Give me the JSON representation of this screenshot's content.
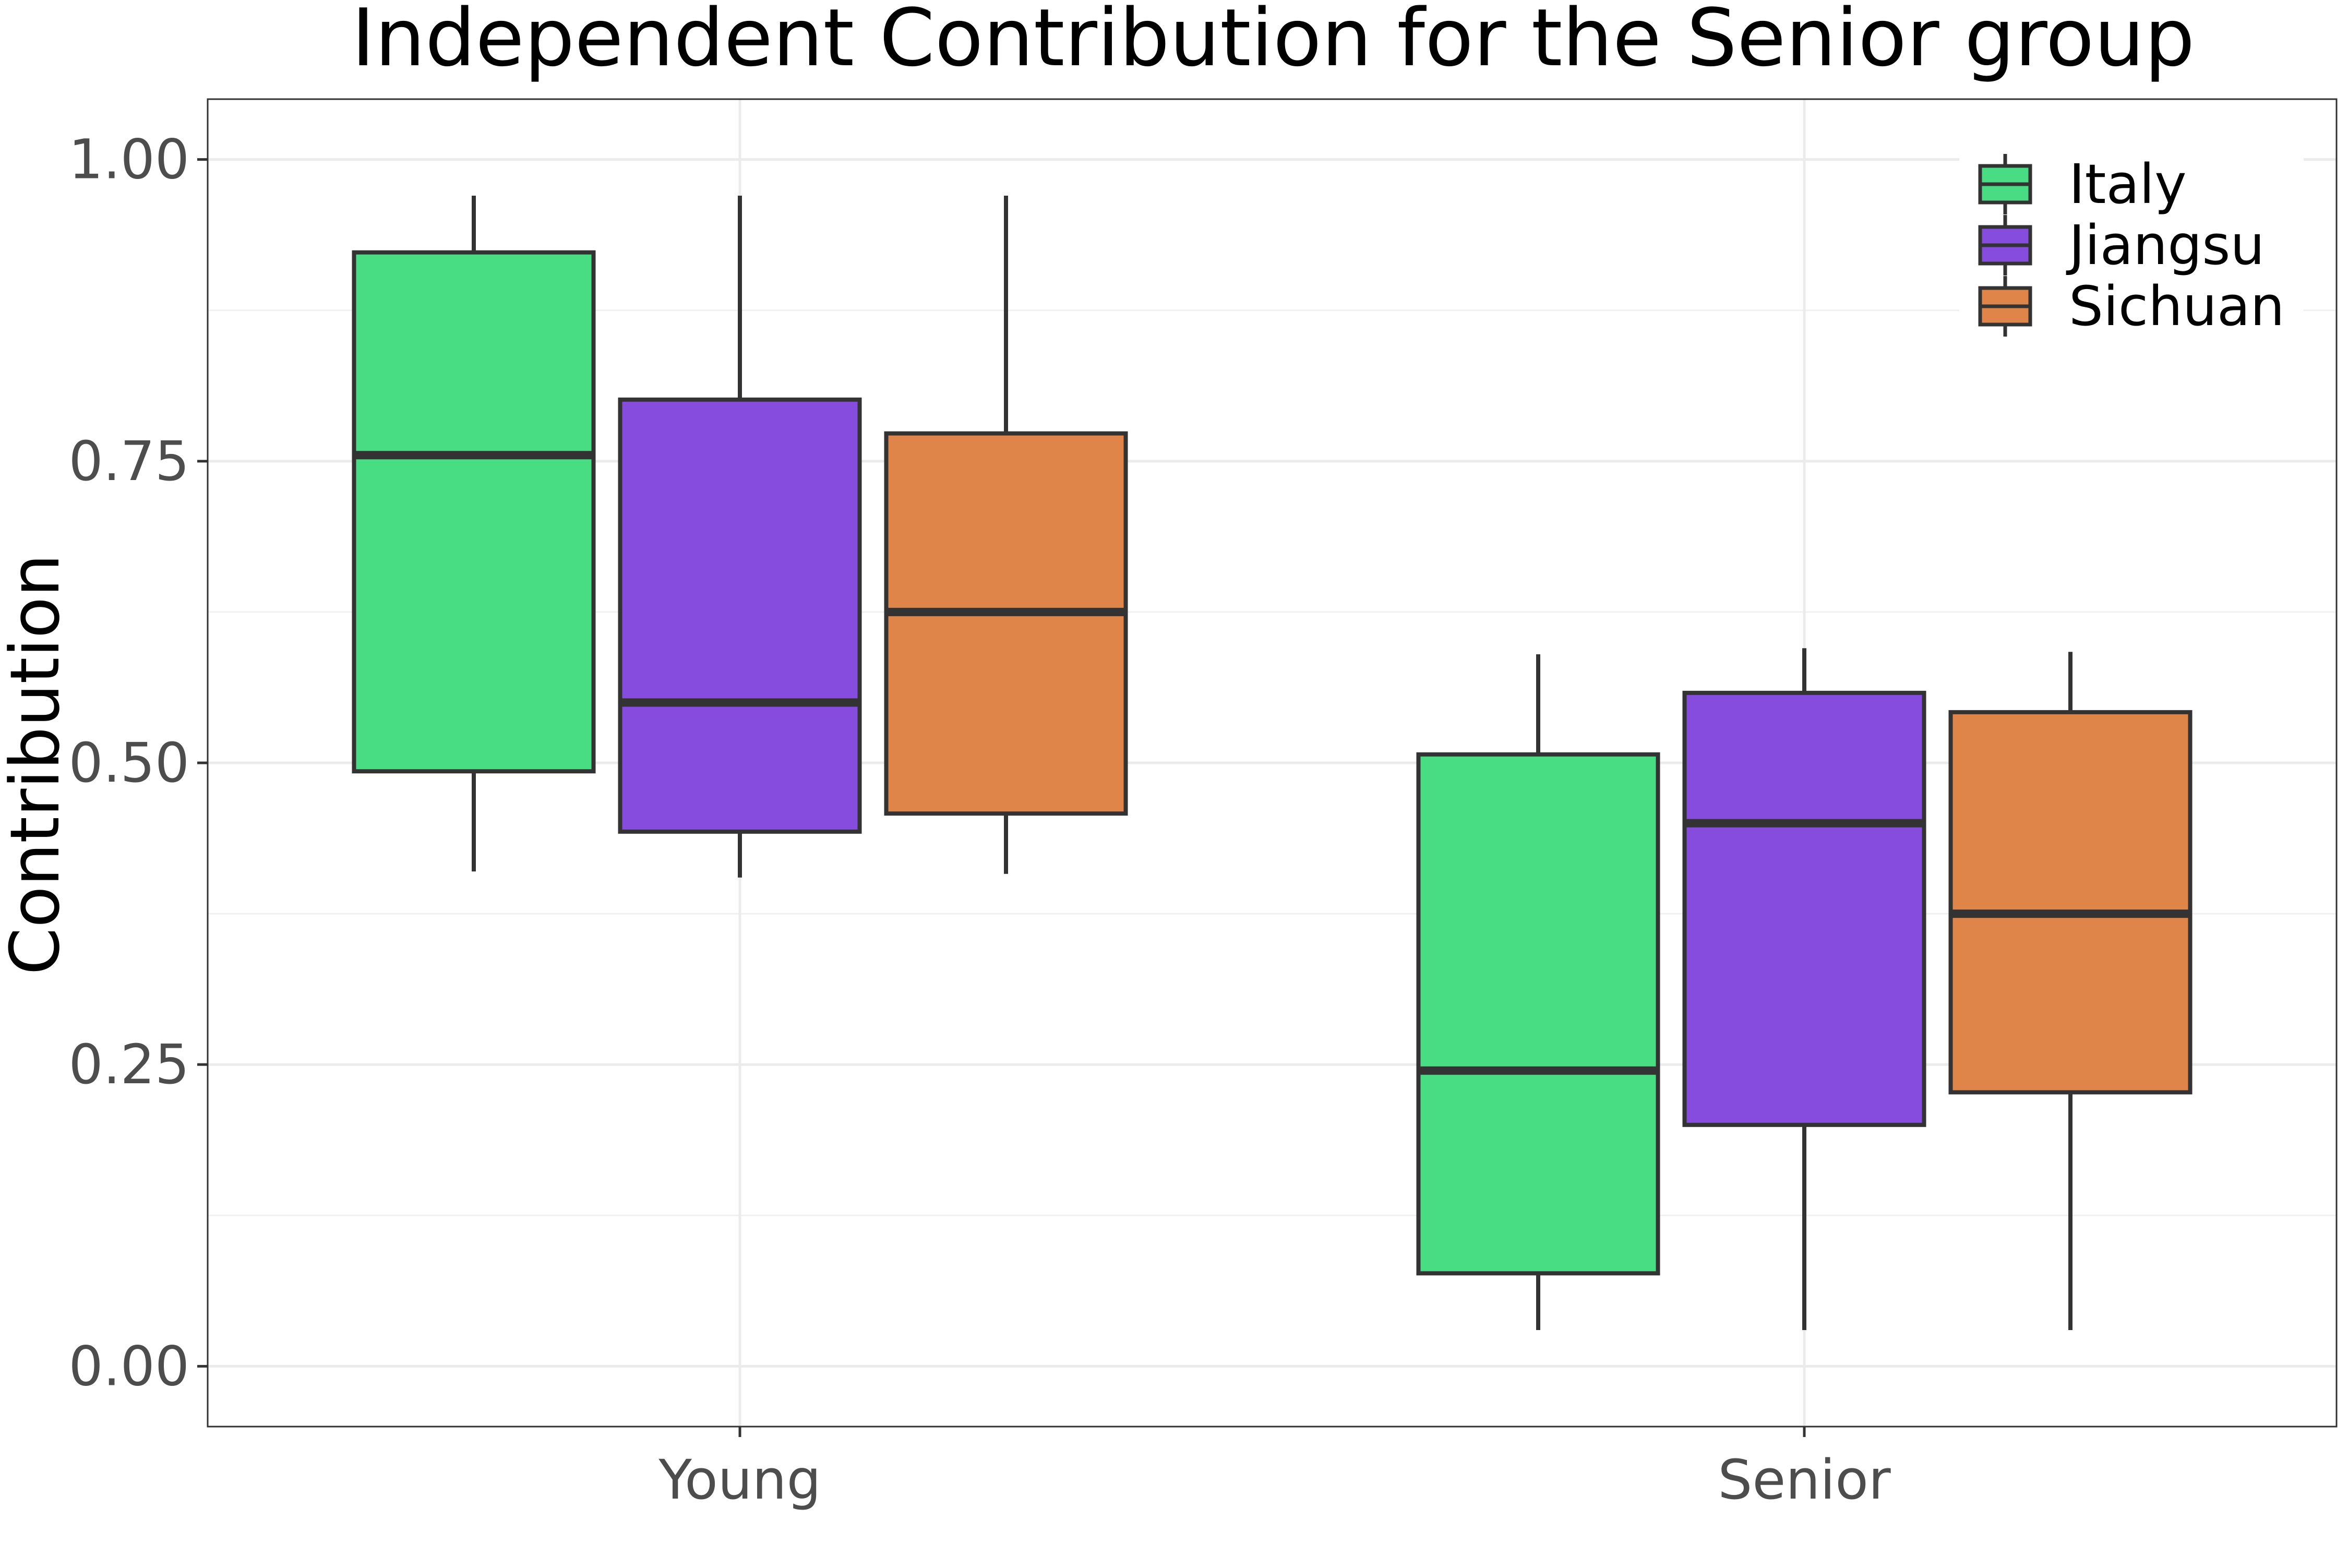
{
  "chart_data": {
    "type": "box",
    "title": "Independent Contribution for the Senior group",
    "xlabel": "",
    "ylabel": "Contribution",
    "categories": [
      "Young",
      "Senior"
    ],
    "ylim": [
      -0.05,
      1.05
    ],
    "yticks": [
      0,
      0.25,
      0.5,
      0.75,
      1
    ],
    "ytick_labels": [
      "0.00",
      "0.25",
      "0.50",
      "0.75",
      "1.00"
    ],
    "grid": true,
    "legend_position": "top-right",
    "series": [
      {
        "name": "Italy",
        "color": "#48DD83",
        "boxes": [
          {
            "category": "Young",
            "min": 0.41,
            "q1": 0.493,
            "median": 0.755,
            "q3": 0.923,
            "max": 0.97
          },
          {
            "category": "Senior",
            "min": 0.03,
            "q1": 0.077,
            "median": 0.245,
            "q3": 0.507,
            "max": 0.59
          }
        ]
      },
      {
        "name": "Jiangsu",
        "color": "#854CDE",
        "boxes": [
          {
            "category": "Young",
            "min": 0.405,
            "q1": 0.443,
            "median": 0.55,
            "q3": 0.801,
            "max": 0.97
          },
          {
            "category": "Senior",
            "min": 0.03,
            "q1": 0.2,
            "median": 0.45,
            "q3": 0.558,
            "max": 0.595
          }
        ]
      },
      {
        "name": "Sichuan",
        "color": "#E0854A",
        "boxes": [
          {
            "category": "Young",
            "min": 0.408,
            "q1": 0.458,
            "median": 0.625,
            "q3": 0.773,
            "max": 0.97
          },
          {
            "category": "Senior",
            "min": 0.03,
            "q1": 0.227,
            "median": 0.375,
            "q3": 0.542,
            "max": 0.592
          }
        ]
      }
    ]
  }
}
